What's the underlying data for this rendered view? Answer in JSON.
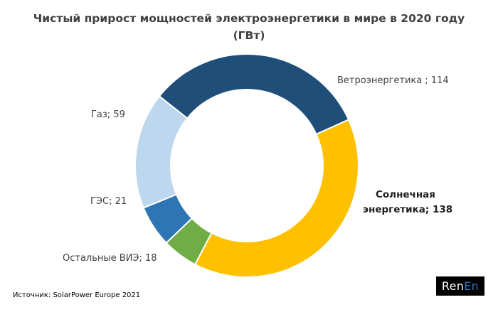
{
  "chart_data": {
    "type": "pie",
    "title_line1": "Чистый прирост мощностей электроэнергетики в мире в 2020 году",
    "title_line2": "(ГВт)",
    "slices": [
      {
        "name": "Ветроэнергетика",
        "value": 114,
        "label": "Ветроэнергетика ; 114",
        "color": "#1f4e79"
      },
      {
        "name": "Солнечная энергетика",
        "value": 138,
        "label_line1": "Солнечная",
        "label_line2": "энергетика; 138",
        "color": "#ffc000"
      },
      {
        "name": "Остальные ВИЭ",
        "value": 18,
        "label": "Остальные ВИЭ; 18",
        "color": "#70ad47"
      },
      {
        "name": "ГЭС",
        "value": 21,
        "label": "ГЭС; 21",
        "color": "#2e75b6"
      },
      {
        "name": "Газ",
        "value": 59,
        "label": "Газ; 59",
        "color": "#bdd7ee"
      }
    ]
  },
  "source": "Источник: SolarPower Europe 2021",
  "logo": {
    "text_ren": "Ren",
    "text_en": "En",
    "accent": "#2e75b6"
  }
}
